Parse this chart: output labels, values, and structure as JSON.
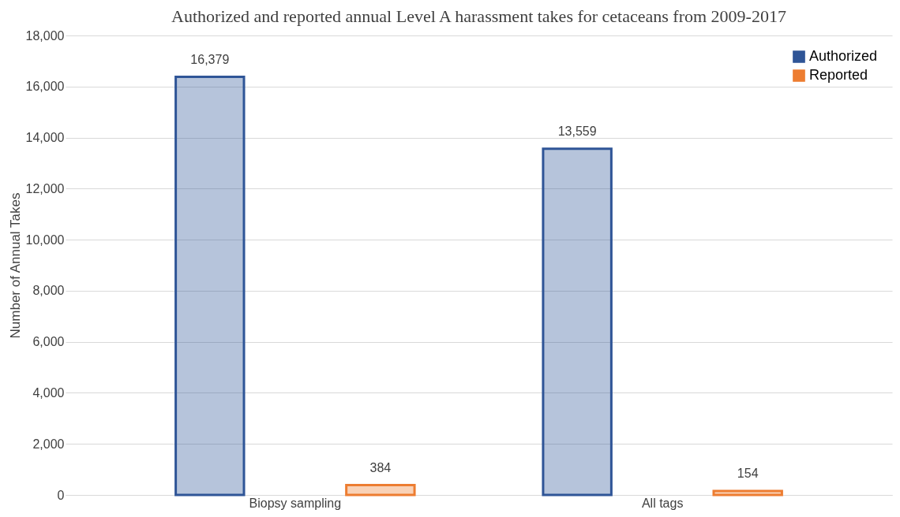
{
  "chart_data": {
    "type": "bar",
    "title": "Authorized and reported annual Level A harassment takes for cetaceans from 2009-2017",
    "ylabel": "Number of Annual Takes",
    "categories": [
      "Biopsy sampling",
      "All tags"
    ],
    "series": [
      {
        "name": "Authorized",
        "color": "#2f5597",
        "values": [
          16379,
          13559
        ],
        "value_labels": [
          "16,379",
          "13,559"
        ]
      },
      {
        "name": "Reported",
        "color": "#ed7d31",
        "values": [
          384,
          154
        ],
        "value_labels": [
          "384",
          "154"
        ]
      }
    ],
    "ylim": [
      0,
      18000
    ],
    "yticks": [
      0,
      {
        "value": 2000,
        "label": "2,000"
      },
      {
        "value": 4000,
        "label": "4,000"
      },
      {
        "value": 6000,
        "label": "6,000"
      },
      {
        "value": 8000,
        "label": "8,000"
      },
      {
        "value": 10000,
        "label": "10,000"
      },
      {
        "value": 12000,
        "label": "12,000"
      },
      {
        "value": 14000,
        "label": "14,000"
      },
      {
        "value": 16000,
        "label": "16,000"
      },
      {
        "value": 18000,
        "label": "18,000"
      }
    ],
    "grid": "y",
    "legend": "top right"
  }
}
